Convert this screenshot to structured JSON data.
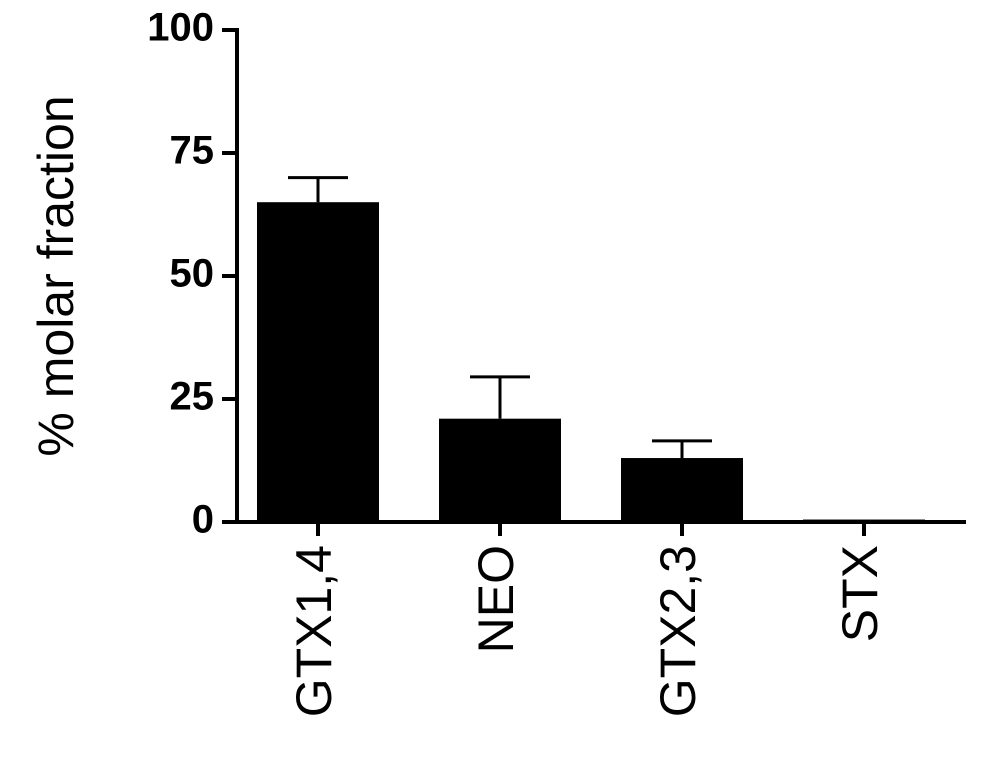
{
  "chart_data": {
    "type": "bar",
    "y_label": "% molar fraction",
    "categories": [
      "GTX1,4",
      "NEO",
      "GTX2,3",
      "STX"
    ],
    "values": [
      65,
      21,
      13,
      0.5
    ],
    "errors": [
      5,
      8.5,
      3.5,
      0
    ],
    "color": "#000000",
    "ylim": [
      0,
      100
    ],
    "yticks": [
      0,
      25,
      50,
      75,
      100
    ],
    "grid": false
  }
}
